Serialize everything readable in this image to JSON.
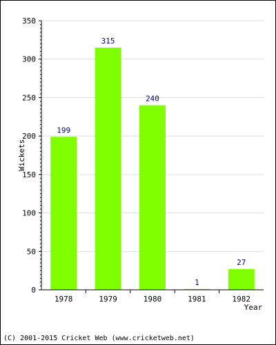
{
  "chart_data": {
    "type": "bar",
    "categories": [
      "1978",
      "1979",
      "1980",
      "1981",
      "1982"
    ],
    "values": [
      199,
      315,
      240,
      1,
      27
    ],
    "title": "",
    "xlabel": "Year",
    "ylabel": "Wickets",
    "ylim": [
      0,
      350
    ],
    "y_ticks": [
      "0",
      "50",
      "100",
      "150",
      "200",
      "250",
      "300",
      "350"
    ],
    "grid": true,
    "data_labels": [
      "199",
      "315",
      "240",
      "1",
      "27"
    ],
    "colors": {
      "bar": "#80ff00",
      "grid": "#dddddd",
      "data_label": "#000080",
      "axis": "#000000"
    }
  },
  "footer": {
    "copyright": "(C) 2001-2015 Cricket Web (www.cricketweb.net)"
  }
}
